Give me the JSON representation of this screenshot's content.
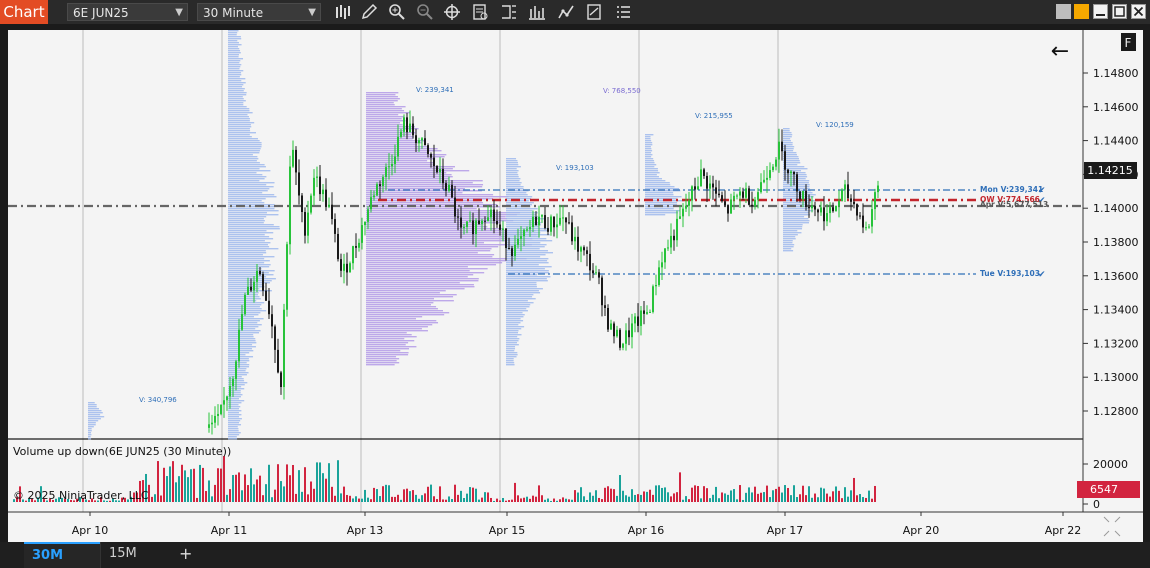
{
  "app": {
    "title": "Chart"
  },
  "toolbar": {
    "instrument": "6E JUN25",
    "timeframe": "30 Minute",
    "icons": [
      "bars-icon",
      "pencil-icon",
      "zoom-in-icon",
      "zoom-out-icon",
      "crosshair-icon",
      "data-box-icon",
      "properties-icon",
      "strategies-icon",
      "chart-trader-icon",
      "calculator-icon",
      "list-icon"
    ]
  },
  "window_controls": {
    "icons": [
      "gray-square-icon",
      "orange-square-icon",
      "minimize-icon",
      "maximize-icon",
      "close-icon"
    ]
  },
  "price_panel": {
    "corner_badge": "F",
    "back_arrow": "←",
    "price_ticks": [
      "1.14800",
      "1.14600",
      "1.14400",
      "1.14200",
      "1.14000",
      "1.13800",
      "1.13600",
      "1.13400",
      "1.13200",
      "1.13000",
      "1.12800"
    ],
    "current_price": "1.14215",
    "profile_labels": [
      "V: 340,796",
      "V: 239,341",
      "V: 768,550",
      "V: 193,103",
      "V: 215,955",
      "V: 120,159"
    ],
    "level_labels": [
      "Mon V:239,341",
      "OW V:774,566",
      "Apr V:5,677,513",
      "Tue V:193,103"
    ]
  },
  "volume_panel": {
    "title": "Volume up down(6E JUN25 (30 Minute))",
    "copyright": "© 2025 NinjaTrader, LLC",
    "ticks": [
      "20000",
      "0"
    ],
    "current_volume": "6547"
  },
  "time_axis": {
    "labels": [
      "Apr 10",
      "Apr 11",
      "Apr 13",
      "Apr 15",
      "Apr 16",
      "Apr 17",
      "Apr 20",
      "Apr 22"
    ]
  },
  "tabs": [
    {
      "label": "30M",
      "active": true
    },
    {
      "label": "15M",
      "active": false
    }
  ],
  "add_tab": "+",
  "colors": {
    "up": "#27c33a",
    "down": "#1a1a1a",
    "vol_up": "#1aa39a",
    "vol_down": "#d2243f",
    "profile": "#9fb8ec",
    "profile_va": "#b39ae6",
    "level": "#2f6fb8",
    "price_badge": "#1a1a1a",
    "volume_badge": "#d2243f",
    "accent": "#e34c24"
  }
}
